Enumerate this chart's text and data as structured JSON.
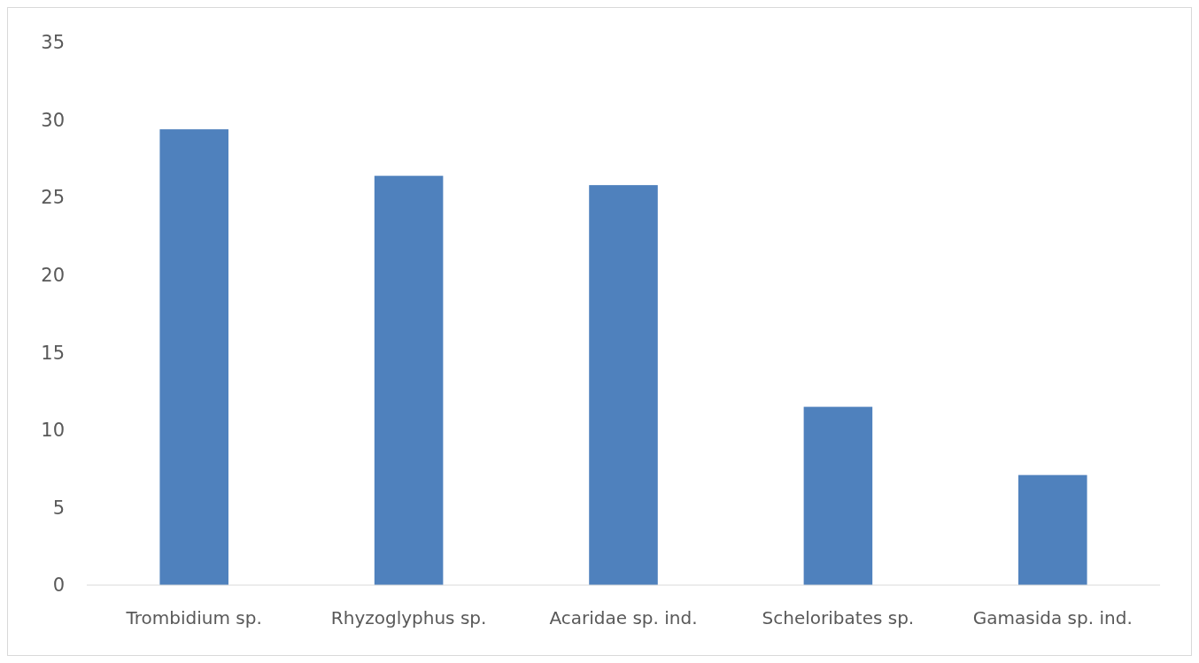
{
  "chart_data": {
    "type": "bar",
    "categories": [
      "Trombidium sp.",
      "Rhyzoglyphus sp.",
      "Acaridae sp. ind.",
      "Scheloribates sp.",
      "Gamasida sp. ind."
    ],
    "values": [
      29.4,
      26.4,
      25.8,
      11.5,
      7.1
    ],
    "color": "#4f81bd",
    "ylim": [
      0,
      35
    ],
    "yticks": [
      0,
      5,
      10,
      15,
      20,
      25,
      30,
      35
    ],
    "grid": false
  }
}
